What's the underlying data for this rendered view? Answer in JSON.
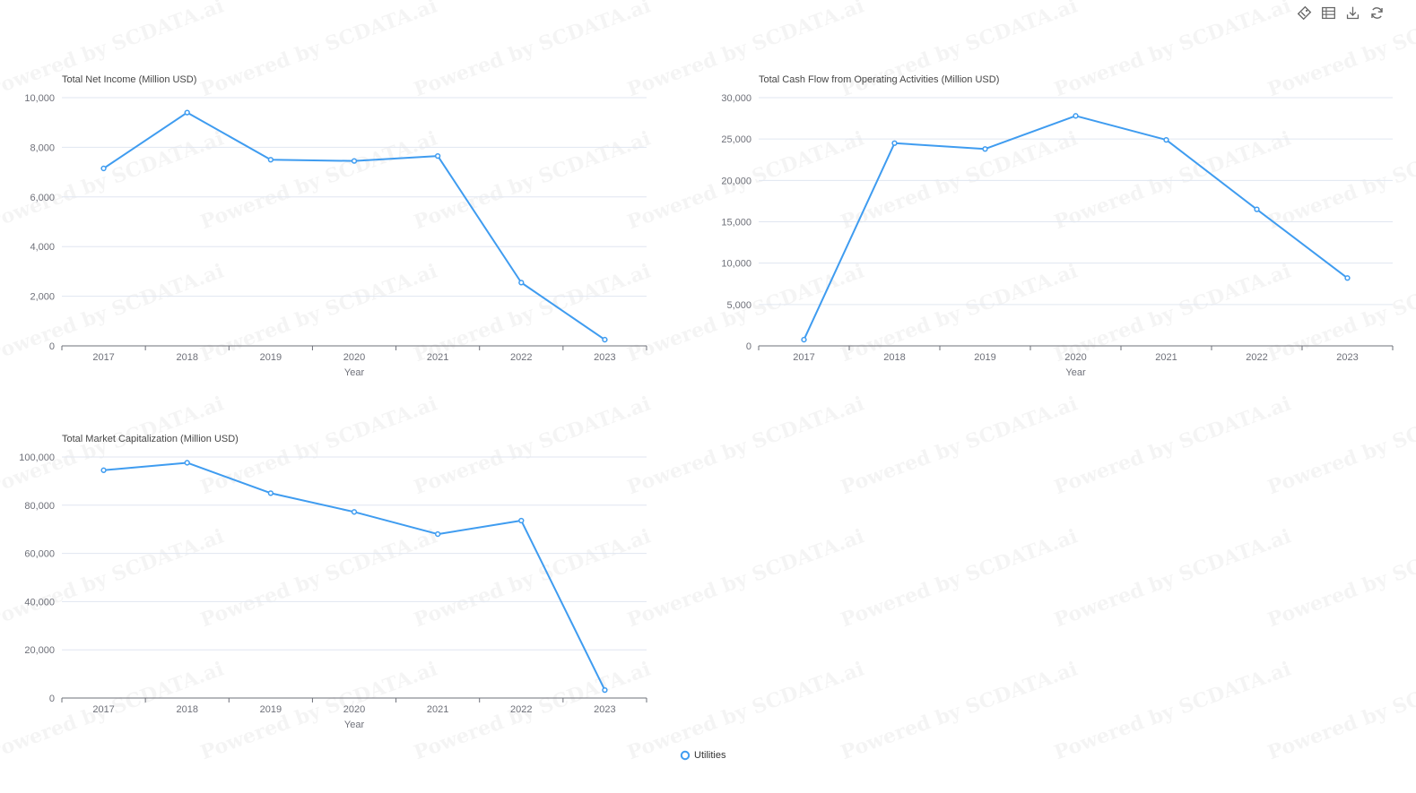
{
  "toolbar": {
    "items": [
      {
        "name": "feature-toggle-icon"
      },
      {
        "name": "data-view-icon"
      },
      {
        "name": "save-image-icon"
      },
      {
        "name": "restore-icon"
      }
    ]
  },
  "watermark": {
    "text": "Powered by SCDATA.ai"
  },
  "legend": {
    "label": "Utilities",
    "color": "#3f9cf0"
  },
  "chart_data": [
    {
      "type": "line",
      "title": "Total Net Income (Million USD)",
      "xlabel": "Year",
      "ylabel": "",
      "categories": [
        "2017",
        "2018",
        "2019",
        "2020",
        "2021",
        "2022",
        "2023"
      ],
      "series": [
        {
          "name": "Utilities",
          "values": [
            7150,
            9400,
            7500,
            7450,
            7650,
            2550,
            250
          ]
        }
      ],
      "ylim": [
        0,
        10000
      ],
      "yticks": [
        0,
        2000,
        4000,
        6000,
        8000,
        10000
      ],
      "ytick_labels": [
        "0",
        "2,000",
        "4,000",
        "6,000",
        "8,000",
        "10,000"
      ],
      "grid": true,
      "color": "#3f9cf0"
    },
    {
      "type": "line",
      "title": "Total Cash Flow from Operating Activities (Million USD)",
      "xlabel": "Year",
      "ylabel": "",
      "categories": [
        "2017",
        "2018",
        "2019",
        "2020",
        "2021",
        "2022",
        "2023"
      ],
      "series": [
        {
          "name": "Utilities",
          "values": [
            750,
            24500,
            23800,
            27800,
            24900,
            16500,
            8200
          ]
        }
      ],
      "ylim": [
        0,
        30000
      ],
      "yticks": [
        0,
        5000,
        10000,
        15000,
        20000,
        25000,
        30000
      ],
      "ytick_labels": [
        "0",
        "5,000",
        "10,000",
        "15,000",
        "20,000",
        "25,000",
        "30,000"
      ],
      "grid": true,
      "color": "#3f9cf0"
    },
    {
      "type": "line",
      "title": "Total Market Capitalization (Million USD)",
      "xlabel": "Year",
      "ylabel": "",
      "categories": [
        "2017",
        "2018",
        "2019",
        "2020",
        "2021",
        "2022",
        "2023"
      ],
      "series": [
        {
          "name": "Utilities",
          "values": [
            94500,
            97600,
            85000,
            77200,
            68000,
            73600,
            3300
          ]
        }
      ],
      "ylim": [
        0,
        100000
      ],
      "yticks": [
        0,
        20000,
        40000,
        60000,
        80000,
        100000
      ],
      "ytick_labels": [
        "0",
        "20,000",
        "40,000",
        "60,000",
        "80,000",
        "100,000"
      ],
      "grid": true,
      "color": "#3f9cf0"
    }
  ]
}
